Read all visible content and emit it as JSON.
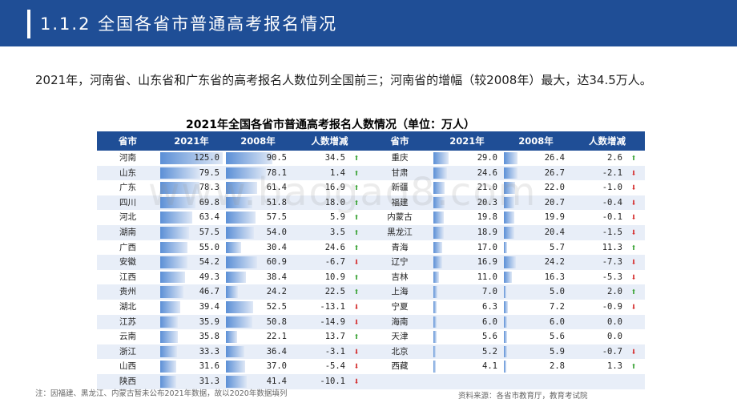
{
  "header": {
    "title": "1.1.2 全国各省市普通高考报名情况"
  },
  "intro": "2021年，河南省、山东省和广东省的高考报名人数位列全国前三；河南省的增幅（较2008年）最大，达34.5万人。",
  "table": {
    "title": "2021年全国各省市普通高考报名人数情况（单位：万人）",
    "headers": [
      "省市",
      "2021年",
      "2008年",
      "人数增减",
      "省市",
      "2021年",
      "2008年",
      "人数增减"
    ],
    "max_value": 125.0,
    "left_rows": [
      {
        "prov": "河南",
        "y2021": "125.0",
        "y2008": "90.5",
        "diff": "34.5",
        "dir": "up"
      },
      {
        "prov": "山东",
        "y2021": "79.5",
        "y2008": "78.1",
        "diff": "1.4",
        "dir": "up"
      },
      {
        "prov": "广东",
        "y2021": "78.3",
        "y2008": "61.4",
        "diff": "16.9",
        "dir": "up"
      },
      {
        "prov": "四川",
        "y2021": "69.8",
        "y2008": "51.8",
        "diff": "18.0",
        "dir": "up"
      },
      {
        "prov": "河北",
        "y2021": "63.4",
        "y2008": "57.5",
        "diff": "5.9",
        "dir": "up"
      },
      {
        "prov": "湖南",
        "y2021": "57.5",
        "y2008": "54.0",
        "diff": "3.5",
        "dir": "up"
      },
      {
        "prov": "广西",
        "y2021": "55.0",
        "y2008": "30.4",
        "diff": "24.6",
        "dir": "up"
      },
      {
        "prov": "安徽",
        "y2021": "54.2",
        "y2008": "60.9",
        "diff": "-6.7",
        "dir": "down"
      },
      {
        "prov": "江西",
        "y2021": "49.3",
        "y2008": "38.4",
        "diff": "10.9",
        "dir": "up"
      },
      {
        "prov": "贵州",
        "y2021": "46.7",
        "y2008": "24.2",
        "diff": "22.5",
        "dir": "up"
      },
      {
        "prov": "湖北",
        "y2021": "39.4",
        "y2008": "52.5",
        "diff": "-13.1",
        "dir": "down"
      },
      {
        "prov": "江苏",
        "y2021": "35.9",
        "y2008": "50.8",
        "diff": "-14.9",
        "dir": "down"
      },
      {
        "prov": "云南",
        "y2021": "35.8",
        "y2008": "22.1",
        "diff": "13.7",
        "dir": "up"
      },
      {
        "prov": "浙江",
        "y2021": "33.3",
        "y2008": "36.4",
        "diff": "-3.1",
        "dir": "down"
      },
      {
        "prov": "山西",
        "y2021": "31.6",
        "y2008": "37.0",
        "diff": "-5.4",
        "dir": "down"
      },
      {
        "prov": "陕西",
        "y2021": "31.3",
        "y2008": "41.4",
        "diff": "-10.1",
        "dir": "down"
      }
    ],
    "right_rows": [
      {
        "prov": "重庆",
        "y2021": "29.0",
        "y2008": "26.4",
        "diff": "2.6",
        "dir": "up"
      },
      {
        "prov": "甘肃",
        "y2021": "24.6",
        "y2008": "26.7",
        "diff": "-2.1",
        "dir": "down"
      },
      {
        "prov": "新疆",
        "y2021": "21.0",
        "y2008": "22.0",
        "diff": "-1.0",
        "dir": "down"
      },
      {
        "prov": "福建",
        "y2021": "20.3",
        "y2008": "20.7",
        "diff": "-0.4",
        "dir": "down"
      },
      {
        "prov": "内蒙古",
        "y2021": "19.8",
        "y2008": "19.9",
        "diff": "-0.1",
        "dir": "down"
      },
      {
        "prov": "黑龙江",
        "y2021": "18.9",
        "y2008": "20.4",
        "diff": "-1.5",
        "dir": "down"
      },
      {
        "prov": "青海",
        "y2021": "17.0",
        "y2008": "5.7",
        "diff": "11.3",
        "dir": "up"
      },
      {
        "prov": "辽宁",
        "y2021": "16.9",
        "y2008": "24.2",
        "diff": "-7.3",
        "dir": "down"
      },
      {
        "prov": "吉林",
        "y2021": "11.0",
        "y2008": "16.3",
        "diff": "-5.3",
        "dir": "down"
      },
      {
        "prov": "上海",
        "y2021": "7.0",
        "y2008": "5.0",
        "diff": "2.0",
        "dir": "up"
      },
      {
        "prov": "宁夏",
        "y2021": "6.3",
        "y2008": "7.2",
        "diff": "-0.9",
        "dir": "down"
      },
      {
        "prov": "海南",
        "y2021": "6.0",
        "y2008": "6.0",
        "diff": "0.0",
        "dir": "none"
      },
      {
        "prov": "天津",
        "y2021": "5.6",
        "y2008": "5.6",
        "diff": "0.0",
        "dir": "none"
      },
      {
        "prov": "北京",
        "y2021": "5.2",
        "y2008": "5.9",
        "diff": "-0.7",
        "dir": "down"
      },
      {
        "prov": "西藏",
        "y2021": "4.1",
        "y2008": "2.8",
        "diff": "1.3",
        "dir": "up"
      }
    ]
  },
  "colors": {
    "header_bg": "#1f4e96",
    "arrow_up": "#3aa335",
    "arrow_down": "#d42a2a",
    "bar": "#5b8fd6"
  },
  "watermark": "www.baogao8.com",
  "footnote": "注：因福建、黑龙江、内蒙古暂未公布2021年数据，故以2020年数据填列",
  "source": "资料来源：各省市教育厅，教育考试院"
}
